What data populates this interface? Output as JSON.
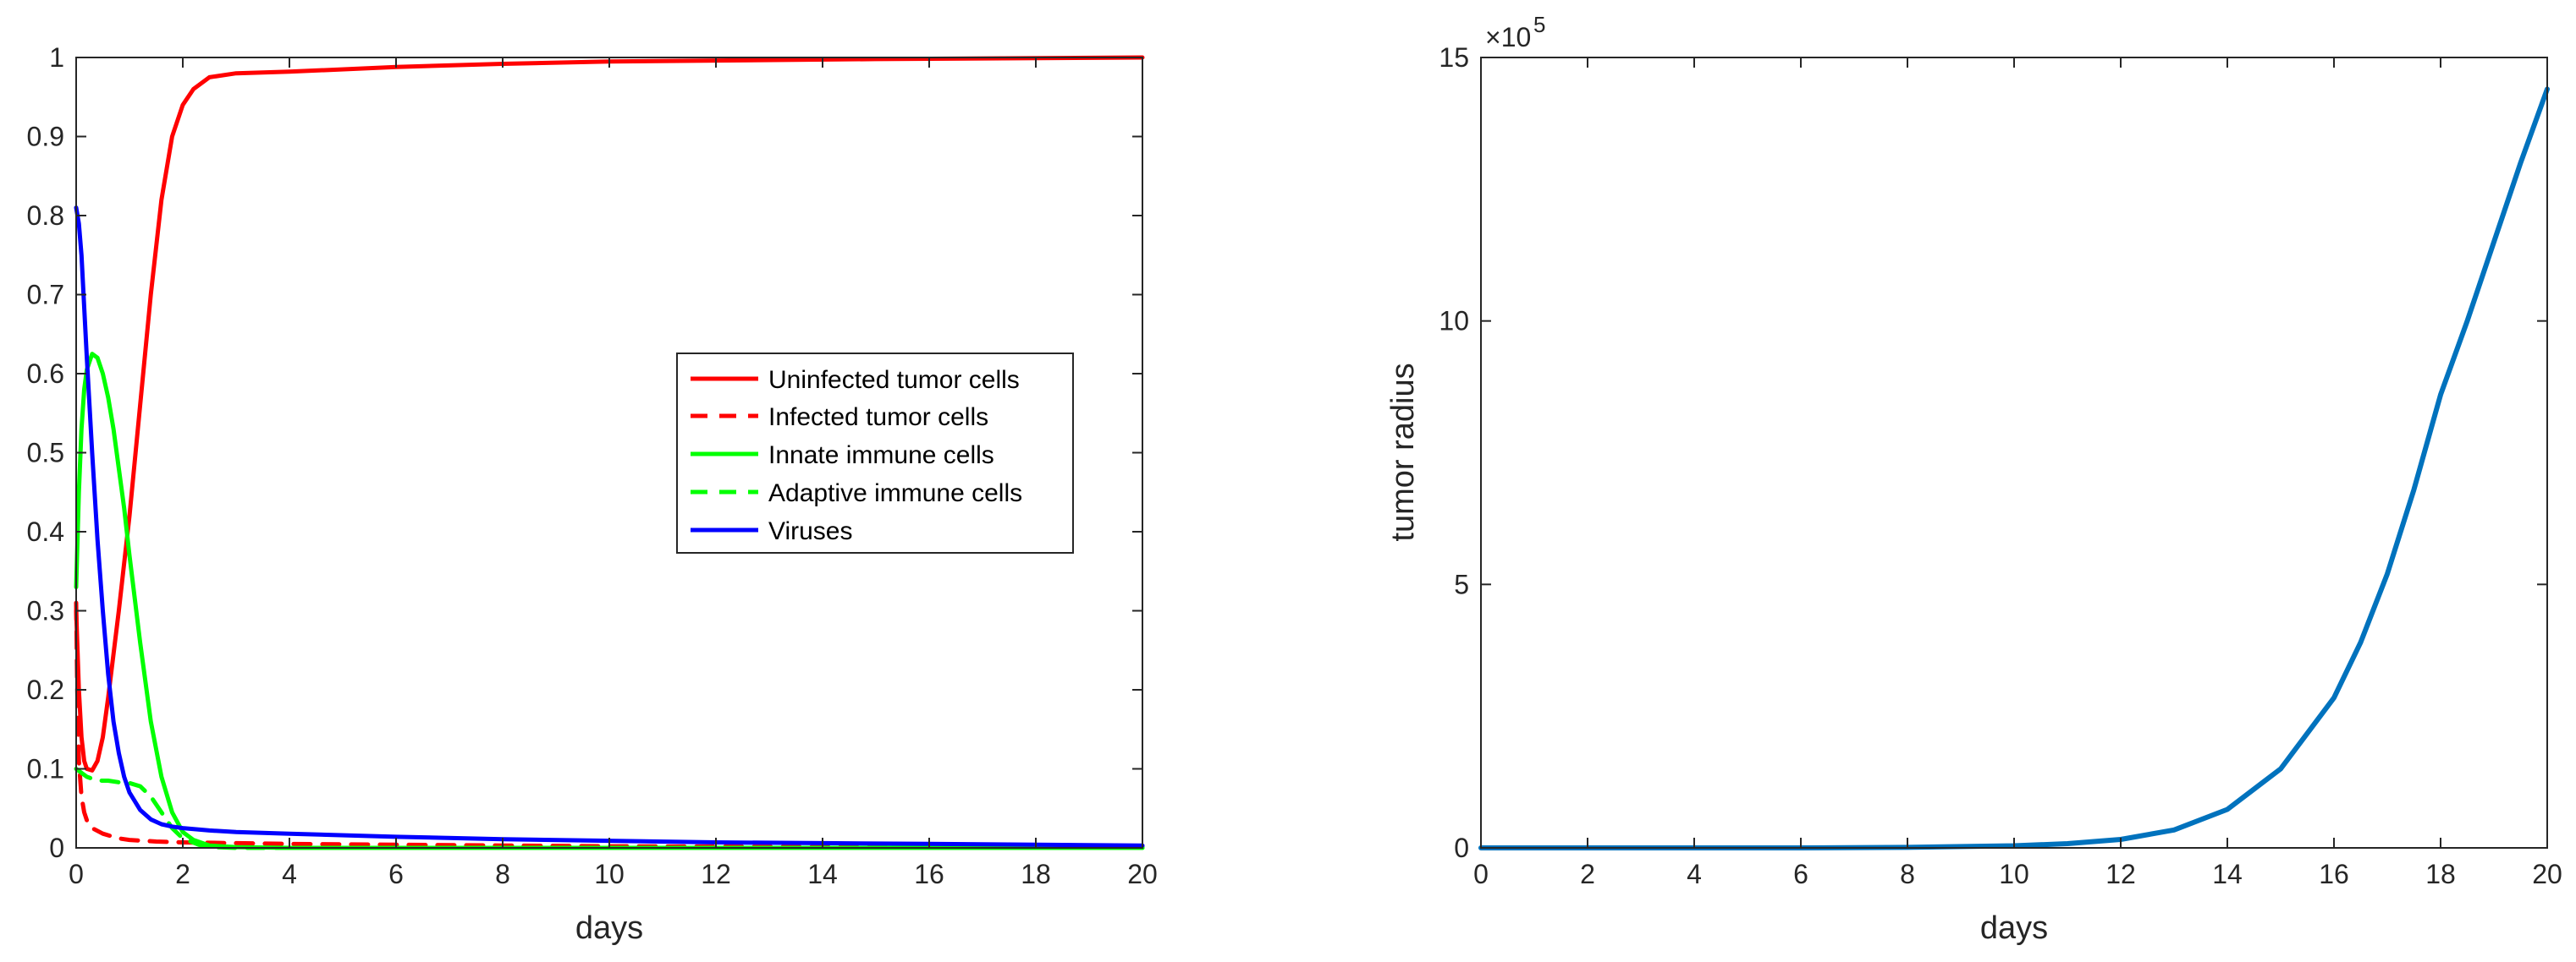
{
  "chart_data": [
    {
      "type": "line",
      "title": "",
      "xlabel": "days",
      "ylabel": "",
      "xlim": [
        0,
        20
      ],
      "ylim": [
        0,
        1
      ],
      "xticks": [
        0,
        2,
        4,
        6,
        8,
        10,
        12,
        14,
        16,
        18,
        20
      ],
      "yticks": [
        0,
        0.1,
        0.2,
        0.3,
        0.4,
        0.5,
        0.6,
        0.7,
        0.8,
        0.9,
        1
      ],
      "ytick_labels": [
        "0",
        "0.1",
        "0.2",
        "0.3",
        "0.4",
        "0.5",
        "0.6",
        "0.7",
        "0.8",
        "0.9",
        "1"
      ],
      "legend_position": "center-right",
      "series": [
        {
          "name": "Uninfected tumor cells",
          "color": "#ff0000",
          "dash": "solid",
          "x": [
            0,
            0.05,
            0.1,
            0.15,
            0.2,
            0.3,
            0.4,
            0.5,
            0.6,
            0.8,
            1.0,
            1.2,
            1.4,
            1.6,
            1.8,
            2.0,
            2.2,
            2.5,
            3.0,
            4,
            6,
            8,
            10,
            15,
            20
          ],
          "y": [
            0.3,
            0.2,
            0.14,
            0.11,
            0.1,
            0.098,
            0.11,
            0.14,
            0.19,
            0.3,
            0.42,
            0.56,
            0.7,
            0.82,
            0.9,
            0.94,
            0.96,
            0.975,
            0.98,
            0.982,
            0.988,
            0.992,
            0.995,
            0.998,
            1.0
          ]
        },
        {
          "name": "Infected tumor cells",
          "color": "#ff0000",
          "dash": "dashed",
          "x": [
            0,
            0.02,
            0.05,
            0.1,
            0.15,
            0.2,
            0.3,
            0.5,
            0.8,
            1.0,
            1.5,
            2.0,
            3,
            4,
            6,
            8,
            10,
            15,
            20
          ],
          "y": [
            0.31,
            0.2,
            0.11,
            0.065,
            0.045,
            0.035,
            0.025,
            0.018,
            0.012,
            0.01,
            0.008,
            0.007,
            0.006,
            0.005,
            0.004,
            0.003,
            0.002,
            0.001,
            0.001
          ]
        },
        {
          "name": "Innate immune cells",
          "color": "#00ff00",
          "dash": "solid",
          "x": [
            0,
            0.05,
            0.1,
            0.15,
            0.2,
            0.3,
            0.4,
            0.5,
            0.6,
            0.7,
            0.8,
            0.9,
            1.0,
            1.2,
            1.4,
            1.6,
            1.8,
            2.0,
            2.2,
            2.5,
            3.0,
            4,
            6,
            10,
            20
          ],
          "y": [
            0.33,
            0.45,
            0.53,
            0.58,
            0.605,
            0.625,
            0.62,
            0.6,
            0.57,
            0.53,
            0.48,
            0.43,
            0.37,
            0.26,
            0.16,
            0.09,
            0.045,
            0.02,
            0.01,
            0.003,
            0.001,
            0,
            0,
            0,
            0
          ]
        },
        {
          "name": "Adaptive immune cells",
          "color": "#00ff00",
          "dash": "dashed",
          "x": [
            0,
            0.1,
            0.2,
            0.4,
            0.6,
            0.8,
            1.0,
            1.2,
            1.4,
            1.6,
            1.8,
            2.0,
            2.3,
            2.6,
            3.0,
            4,
            6,
            10,
            20
          ],
          "y": [
            0.1,
            0.095,
            0.09,
            0.085,
            0.085,
            0.083,
            0.082,
            0.078,
            0.065,
            0.045,
            0.025,
            0.012,
            0.004,
            0.001,
            0,
            0,
            0,
            0,
            0
          ]
        },
        {
          "name": "Viruses",
          "color": "#0000ff",
          "dash": "solid",
          "x": [
            0,
            0.05,
            0.1,
            0.2,
            0.3,
            0.4,
            0.5,
            0.6,
            0.7,
            0.8,
            0.9,
            1.0,
            1.2,
            1.4,
            1.6,
            1.8,
            2.0,
            2.5,
            3,
            4,
            6,
            8,
            10,
            12,
            14,
            16,
            18,
            20
          ],
          "y": [
            0.81,
            0.79,
            0.75,
            0.62,
            0.5,
            0.39,
            0.3,
            0.22,
            0.16,
            0.12,
            0.09,
            0.07,
            0.048,
            0.036,
            0.03,
            0.027,
            0.025,
            0.022,
            0.02,
            0.018,
            0.014,
            0.011,
            0.009,
            0.007,
            0.006,
            0.005,
            0.004,
            0.003
          ]
        }
      ]
    },
    {
      "type": "line",
      "title": "",
      "xlabel": "days",
      "ylabel": "tumor radius",
      "xlim": [
        0,
        20
      ],
      "ylim": [
        0,
        1500000
      ],
      "xticks": [
        0,
        2,
        4,
        6,
        8,
        10,
        12,
        14,
        16,
        18,
        20
      ],
      "yticks": [
        0,
        500000,
        1000000,
        1500000
      ],
      "ytick_labels": [
        "0",
        "5",
        "10",
        "15"
      ],
      "y_exponent_base": "×10",
      "y_exponent_power": "5",
      "series": [
        {
          "color": "#0072bd",
          "dash": "solid",
          "x": [
            0,
            2,
            4,
            6,
            8,
            10,
            11,
            12,
            13,
            14,
            15,
            16,
            16.5,
            17,
            17.5,
            18,
            18.5,
            19,
            19.5,
            20
          ],
          "y": [
            0,
            0,
            0,
            0,
            1000,
            4000,
            8000,
            16000,
            34000,
            73000,
            150000,
            285000,
            390000,
            520000,
            680000,
            860000,
            1000000,
            1150000,
            1300000,
            1440000
          ]
        }
      ]
    }
  ]
}
